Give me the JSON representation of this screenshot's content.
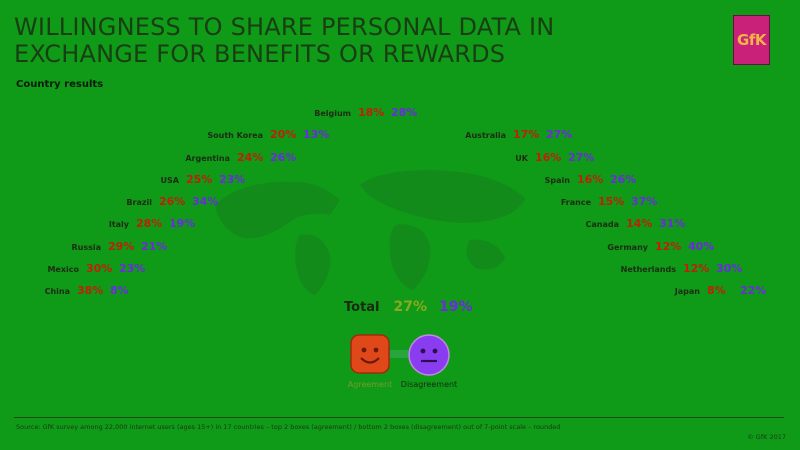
{
  "title_line1": "WILLINGNESS TO SHARE PERSONAL DATA  IN",
  "title_line2": "EXCHANGE FOR BENEFITS OR REWARDS",
  "subtitle": "Country results",
  "logo_text": "GfK",
  "colors": {
    "background": "#0f9a18",
    "agreement": "#c01f0a",
    "disagreement": "#6d2ae0",
    "agreement_face": "#e0481a",
    "disagreement_face": "#8a3cf0"
  },
  "chart_data": {
    "type": "table",
    "title": "WILLINGNESS TO SHARE PERSONAL DATA  IN EXCHANGE FOR BENEFITS OR REWARDS",
    "subtitle": "Country results",
    "columns": [
      "Agreement",
      "Disagreement"
    ],
    "left": [
      {
        "country": "South Korea",
        "agreement": "20%",
        "disagreement": "13%"
      },
      {
        "country": "Argentina",
        "agreement": "24%",
        "disagreement": "26%"
      },
      {
        "country": "USA",
        "agreement": "25%",
        "disagreement": "23%"
      },
      {
        "country": "Brazil",
        "agreement": "26%",
        "disagreement": "34%"
      },
      {
        "country": "Italy",
        "agreement": "28%",
        "disagreement": "19%"
      },
      {
        "country": "Russia",
        "agreement": "29%",
        "disagreement": "21%"
      },
      {
        "country": "Mexico",
        "agreement": "30%",
        "disagreement": "23%"
      },
      {
        "country": "China",
        "agreement": "38%",
        "disagreement": "8%"
      }
    ],
    "top": {
      "country": "Belgium",
      "agreement": "18%",
      "disagreement": "28%"
    },
    "right": [
      {
        "country": "Australia",
        "agreement": "17%",
        "disagreement": "27%"
      },
      {
        "country": "UK",
        "agreement": "16%",
        "disagreement": "27%"
      },
      {
        "country": "Spain",
        "agreement": "16%",
        "disagreement": "26%"
      },
      {
        "country": "France",
        "agreement": "15%",
        "disagreement": "37%"
      },
      {
        "country": "Canada",
        "agreement": "14%",
        "disagreement": "31%"
      },
      {
        "country": "Germany",
        "agreement": "12%",
        "disagreement": "40%"
      },
      {
        "country": "Netherlands",
        "agreement": "12%",
        "disagreement": "30%"
      },
      {
        "country": "Japan",
        "agreement": "8%",
        "disagreement": "22%"
      }
    ],
    "total": {
      "label": "Total",
      "agreement": "27%",
      "disagreement": "19%"
    }
  },
  "legend": {
    "agreement": "Agreement",
    "disagreement": "Disagreement"
  },
  "source": "Source: GfK survey among 22,000 internet users (ages 15+) in 17 countries –  top 2 boxes (agreement) / bottom 2 boxes (disagreement) out of 7-point scale – rounded",
  "copyright": "© GfK 2017"
}
